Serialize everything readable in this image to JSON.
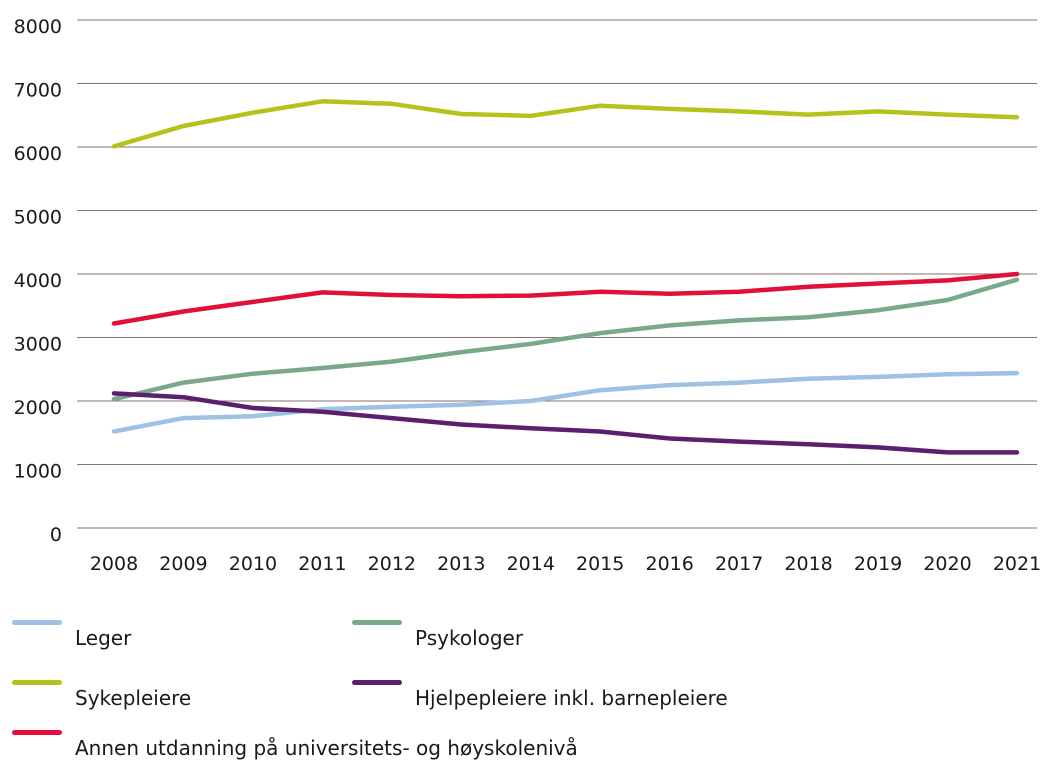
{
  "chart_data": {
    "type": "line",
    "title": "",
    "xlabel": "",
    "ylabel": "",
    "categories": [
      "2008",
      "2009",
      "2010",
      "2011",
      "2012",
      "2013",
      "2014",
      "2015",
      "2016",
      "2017",
      "2018",
      "2019",
      "2020",
      "2021"
    ],
    "ylim": [
      0,
      8000
    ],
    "yticks": [
      "0",
      "1000",
      "2000",
      "3000",
      "4000",
      "5000",
      "6000",
      "7000",
      "8000"
    ],
    "grid": true,
    "legend_position": "bottom",
    "series": [
      {
        "name": "Leger",
        "color": "#9ec1e4",
        "values": [
          1520,
          1730,
          1760,
          1870,
          1910,
          1940,
          2000,
          2170,
          2250,
          2290,
          2350,
          2380,
          2420,
          2440
        ]
      },
      {
        "name": "Psykologer",
        "color": "#79a98b",
        "values": [
          2030,
          2290,
          2430,
          2520,
          2620,
          2770,
          2900,
          3070,
          3190,
          3270,
          3320,
          3430,
          3590,
          3910
        ]
      },
      {
        "name": "Sykepleiere",
        "color": "#b5c21a",
        "values": [
          6010,
          6330,
          6540,
          6720,
          6680,
          6520,
          6490,
          6650,
          6600,
          6560,
          6510,
          6560,
          6510,
          6470
        ]
      },
      {
        "name": "Hjelpepleiere inkl. barnepleiere",
        "color": "#5c1f6e",
        "values": [
          2120,
          2060,
          1890,
          1830,
          1730,
          1630,
          1570,
          1520,
          1410,
          1360,
          1320,
          1270,
          1190,
          1190
        ]
      },
      {
        "name": "Annen utdanning på universitets- og høyskolenivå",
        "color": "#e0103a",
        "values": [
          3220,
          3410,
          3560,
          3710,
          3670,
          3650,
          3660,
          3720,
          3690,
          3720,
          3800,
          3850,
          3900,
          4000
        ]
      }
    ]
  }
}
